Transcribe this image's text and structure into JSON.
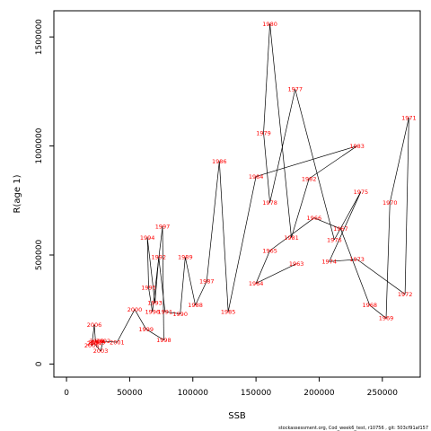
{
  "chart_data": {
    "type": "line",
    "title": "",
    "xlabel": "SSB",
    "ylabel": "R(age 1)",
    "xlim": [
      -10000,
      280000
    ],
    "ylim": [
      -60000,
      1620000
    ],
    "grid": false,
    "legend": "none",
    "x_ticks": [
      {
        "value": 0,
        "label": "0"
      },
      {
        "value": 50000,
        "label": "50000"
      },
      {
        "value": 100000,
        "label": "100000"
      },
      {
        "value": 150000,
        "label": "150000"
      },
      {
        "value": 200000,
        "label": "200000"
      },
      {
        "value": 250000,
        "label": "250000"
      }
    ],
    "y_ticks": [
      {
        "value": 0,
        "label": "0"
      },
      {
        "value": 500000,
        "label": "500000"
      },
      {
        "value": 1000000,
        "label": "1000000"
      },
      {
        "value": 1500000,
        "label": "1500000"
      }
    ],
    "line_color": "#000000",
    "label_color": "#ff0000",
    "points": [
      {
        "year": "1963",
        "ssb": 182000,
        "r": 460000
      },
      {
        "year": "1964",
        "ssb": 150000,
        "r": 370000
      },
      {
        "year": "1965",
        "ssb": 161000,
        "r": 520000
      },
      {
        "year": "1966",
        "ssb": 196000,
        "r": 670000
      },
      {
        "year": "1967",
        "ssb": 217000,
        "r": 620000
      },
      {
        "year": "1968",
        "ssb": 240000,
        "r": 270000
      },
      {
        "year": "1969",
        "ssb": 253000,
        "r": 210000
      },
      {
        "year": "1970",
        "ssb": 256000,
        "r": 740000
      },
      {
        "year": "1971",
        "ssb": 271000,
        "r": 1130000
      },
      {
        "year": "1972",
        "ssb": 268000,
        "r": 320000
      },
      {
        "year": "1973",
        "ssb": 230000,
        "r": 480000
      },
      {
        "year": "1974",
        "ssb": 208000,
        "r": 470000
      },
      {
        "year": "1975",
        "ssb": 233000,
        "r": 790000
      },
      {
        "year": "1976",
        "ssb": 212000,
        "r": 570000
      },
      {
        "year": "1977",
        "ssb": 181000,
        "r": 1260000
      },
      {
        "year": "1978",
        "ssb": 161000,
        "r": 740000
      },
      {
        "year": "1979",
        "ssb": 156000,
        "r": 1060000
      },
      {
        "year": "1980",
        "ssb": 161000,
        "r": 1560000
      },
      {
        "year": "1981",
        "ssb": 178000,
        "r": 580000
      },
      {
        "year": "1982",
        "ssb": 192000,
        "r": 850000
      },
      {
        "year": "1983",
        "ssb": 230000,
        "r": 1000000
      },
      {
        "year": "1984",
        "ssb": 150000,
        "r": 860000
      },
      {
        "year": "1985",
        "ssb": 128000,
        "r": 240000
      },
      {
        "year": "1986",
        "ssb": 121000,
        "r": 930000
      },
      {
        "year": "1987",
        "ssb": 111000,
        "r": 380000
      },
      {
        "year": "1988",
        "ssb": 102000,
        "r": 270000
      },
      {
        "year": "1989",
        "ssb": 94000,
        "r": 490000
      },
      {
        "year": "1990",
        "ssb": 90000,
        "r": 230000
      },
      {
        "year": "1991",
        "ssb": 78000,
        "r": 240000
      },
      {
        "year": "1992",
        "ssb": 73000,
        "r": 490000
      },
      {
        "year": "1993",
        "ssb": 70000,
        "r": 280000
      },
      {
        "year": "1994",
        "ssb": 64000,
        "r": 580000
      },
      {
        "year": "1995",
        "ssb": 65000,
        "r": 350000
      },
      {
        "year": "1996",
        "ssb": 68000,
        "r": 240000
      },
      {
        "year": "1997",
        "ssb": 76000,
        "r": 630000
      },
      {
        "year": "1998",
        "ssb": 77000,
        "r": 110000
      },
      {
        "year": "1999",
        "ssb": 63000,
        "r": 160000
      },
      {
        "year": "2000",
        "ssb": 54000,
        "r": 250000
      },
      {
        "year": "2001",
        "ssb": 40000,
        "r": 100000
      },
      {
        "year": "2002",
        "ssb": 29000,
        "r": 105000
      },
      {
        "year": "2003",
        "ssb": 27000,
        "r": 60000
      },
      {
        "year": "2004",
        "ssb": 22000,
        "r": 95000
      },
      {
        "year": "2005",
        "ssb": 20000,
        "r": 85000
      },
      {
        "year": "2006",
        "ssb": 22000,
        "r": 180000
      },
      {
        "year": "2007",
        "ssb": 23000,
        "r": 100000
      },
      {
        "year": "2008",
        "ssb": 24000,
        "r": 105000
      },
      {
        "year": "2009",
        "ssb": 25000,
        "r": 100000
      }
    ]
  },
  "footer_text": "stockassessment.org, Cod_week6_test, r10756 , git: 503cf91af157"
}
